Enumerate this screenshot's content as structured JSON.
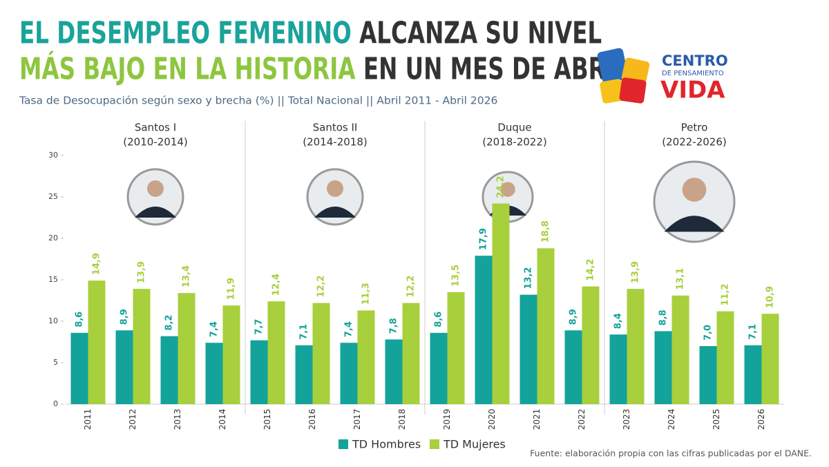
{
  "chart_data": {
    "type": "bar",
    "title": [
      "EL DESEMPLEO FEMENINO",
      "ALCANZA SU NIVEL",
      "MÁS BAJO EN LA HISTORIA",
      "EN UN MES DE ABRIL"
    ],
    "subtitle": "Tasa de Desocupación según sexo y brecha (%) || Total Nacional || Abril 2011 - Abril 2026",
    "periods": [
      {
        "name": "Santos I",
        "years": "(2010-2014)"
      },
      {
        "name": "Santos II",
        "years": "(2014-2018)"
      },
      {
        "name": "Duque",
        "years": "(2018-2022)"
      },
      {
        "name": "Petro",
        "years": "(2022-2026)"
      }
    ],
    "categories": [
      "2011",
      "2012",
      "2013",
      "2014",
      "2015",
      "2016",
      "2017",
      "2018",
      "2019",
      "2020",
      "2021",
      "2022",
      "2023",
      "2024",
      "2025",
      "2026"
    ],
    "series": [
      {
        "name": "TD Hombres",
        "color": "#13a39a",
        "values": [
          8.6,
          8.9,
          8.2,
          7.4,
          7.7,
          7.1,
          7.4,
          7.8,
          8.6,
          17.9,
          13.2,
          8.9,
          8.4,
          8.8,
          7.0,
          7.1
        ],
        "value_labels": [
          "8,6",
          "8,9",
          "8,2",
          "7,4",
          "7,7",
          "7,1",
          "7,4",
          "7,8",
          "8,6",
          "17,9",
          "13,2",
          "8,9",
          "8,4",
          "8,8",
          "7,0",
          "7,1"
        ]
      },
      {
        "name": "TD Mujeres",
        "color": "#a8cf3c",
        "values": [
          14.9,
          13.9,
          13.4,
          11.9,
          12.4,
          12.2,
          11.3,
          12.2,
          13.5,
          24.2,
          18.8,
          14.2,
          13.9,
          13.1,
          11.2,
          10.9
        ],
        "value_labels": [
          "14,9",
          "13,9",
          "13,4",
          "11,9",
          "12,4",
          "12,2",
          "11,3",
          "12,2",
          "13,5",
          "24,2",
          "18,8",
          "14,2",
          "13,9",
          "13,1",
          "11,2",
          "10,9"
        ]
      }
    ],
    "ylim": [
      0,
      30
    ],
    "yticks": [
      0,
      5,
      10,
      15,
      20,
      25,
      30
    ],
    "logo": {
      "line1": "CENTRO",
      "line2": "DE PENSAMIENTO",
      "line3": "VIDA"
    },
    "source": "Fuente: elaboración propia con las cifras publicadas por el DANE."
  }
}
